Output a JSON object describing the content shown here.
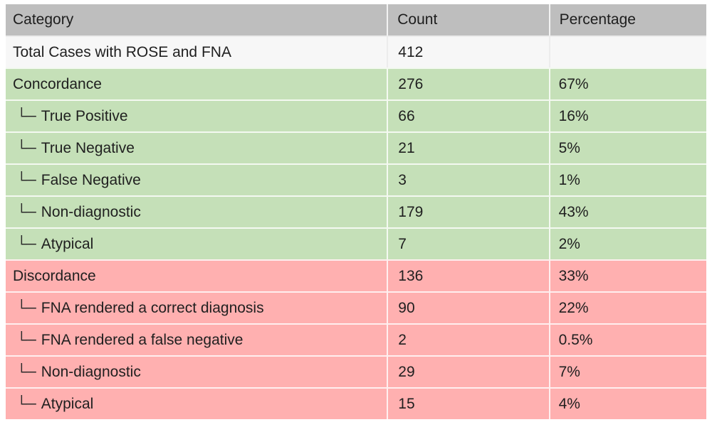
{
  "colors": {
    "header_bg": "#bebebe",
    "total_row_bg": "#f7f7f7",
    "concordance_bg": "#c5e0b8",
    "discordance_bg": "#ffb0b0",
    "text": "#1f1f1f",
    "divider": "#ffffff",
    "page_bg": "#ffffff"
  },
  "chart_data": {
    "type": "table",
    "title": "",
    "tree_glyph": "└─",
    "columns": [
      "Category",
      "Count",
      "Percentage"
    ],
    "rows": [
      {
        "category": "Total Cases with ROSE and FNA",
        "count": "412",
        "percentage": "",
        "section": "total",
        "indent": false
      },
      {
        "category": "Concordance",
        "count": "276",
        "percentage": "67%",
        "section": "concordance",
        "indent": false
      },
      {
        "category": "True Positive",
        "count": "66",
        "percentage": "16%",
        "section": "concordance",
        "indent": true
      },
      {
        "category": "True Negative",
        "count": "21",
        "percentage": "5%",
        "section": "concordance",
        "indent": true
      },
      {
        "category": "False Negative",
        "count": "3",
        "percentage": "1%",
        "section": "concordance",
        "indent": true
      },
      {
        "category": "Non-diagnostic",
        "count": "179",
        "percentage": "43%",
        "section": "concordance",
        "indent": true
      },
      {
        "category": "Atypical",
        "count": "7",
        "percentage": "2%",
        "section": "concordance",
        "indent": true
      },
      {
        "category": "Discordance",
        "count": "136",
        "percentage": "33%",
        "section": "discordance",
        "indent": false
      },
      {
        "category": "FNA rendered a correct diagnosis",
        "count": "90",
        "percentage": "22%",
        "section": "discordance",
        "indent": true
      },
      {
        "category": "FNA rendered a false negative",
        "count": "2",
        "percentage": "0.5%",
        "section": "discordance",
        "indent": true
      },
      {
        "category": "Non-diagnostic",
        "count": "29",
        "percentage": "7%",
        "section": "discordance",
        "indent": true
      },
      {
        "category": "Atypical",
        "count": "15",
        "percentage": "4%",
        "section": "discordance",
        "indent": true
      }
    ]
  }
}
